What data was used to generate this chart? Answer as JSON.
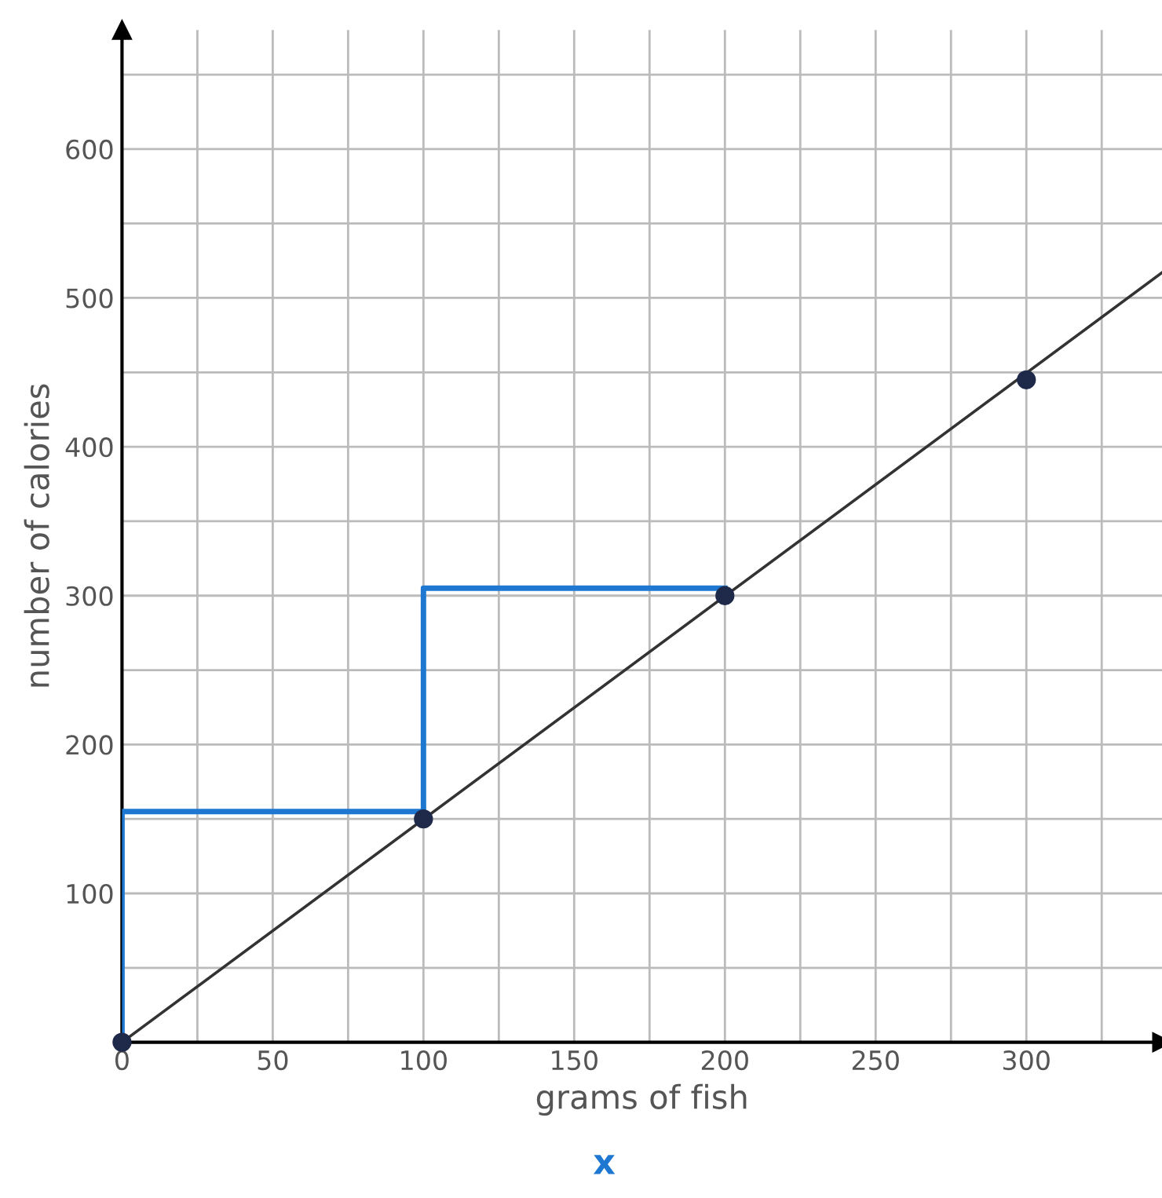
{
  "chart_data": {
    "type": "line",
    "xlabel": "grams of fish",
    "ylabel": "number of calories",
    "xlim": [
      0,
      345
    ],
    "ylim": [
      0,
      680
    ],
    "xticks": [
      0,
      {
        "value": 25,
        "label": null
      },
      50,
      {
        "value": 75,
        "label": null
      },
      100,
      {
        "value": 125,
        "label": null
      },
      150,
      {
        "value": 175,
        "label": null
      },
      200,
      {
        "value": 225,
        "label": null
      },
      250,
      {
        "value": 275,
        "label": null
      },
      300,
      {
        "value": 325,
        "label": null
      }
    ],
    "yticks": [
      {
        "value": 50,
        "label": null
      },
      100,
      {
        "value": 150,
        "label": null
      },
      200,
      {
        "value": 250,
        "label": null
      },
      300,
      {
        "value": 350,
        "label": null
      },
      400,
      {
        "value": 450,
        "label": null
      },
      500,
      {
        "value": 550,
        "label": null
      },
      600,
      {
        "value": 650,
        "label": null
      }
    ],
    "grid": true,
    "series": [
      {
        "color": "#333333",
        "x": [
          0,
          345
        ],
        "values": [
          0,
          517
        ],
        "marker": "none"
      },
      {
        "color": "#1e78d2",
        "x": [
          0,
          0,
          100,
          100,
          200
        ],
        "values": [
          0,
          155,
          155,
          305,
          305
        ],
        "marker": "none"
      },
      {
        "type": "scatter",
        "color": "#1f2a4a",
        "x": [
          0,
          100,
          200,
          300
        ],
        "values": [
          0,
          150,
          300,
          445
        ],
        "marker": "circle"
      }
    ],
    "annotations": [
      "x"
    ]
  }
}
